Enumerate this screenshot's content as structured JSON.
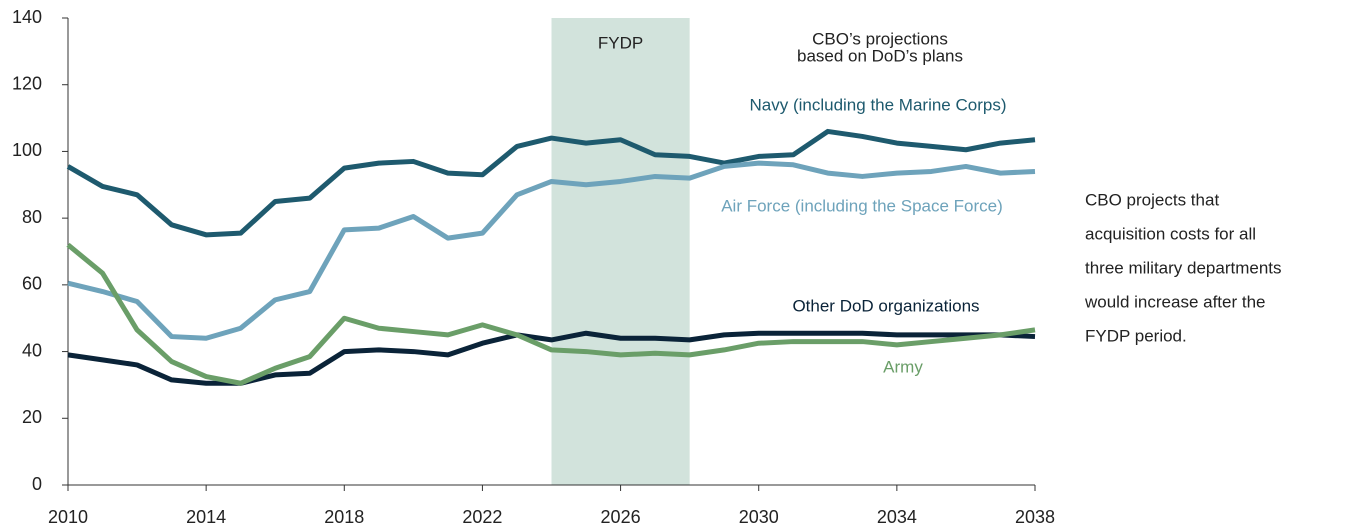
{
  "chart_data": {
    "type": "line",
    "x": [
      2010,
      2011,
      2012,
      2013,
      2014,
      2015,
      2016,
      2017,
      2018,
      2019,
      2020,
      2021,
      2022,
      2023,
      2024,
      2025,
      2026,
      2027,
      2028,
      2029,
      2030,
      2031,
      2032,
      2033,
      2034,
      2035,
      2036,
      2037,
      2038
    ],
    "series": [
      {
        "name": "Navy (including the Marine Corps)",
        "color": "#1e5a6e",
        "values": [
          95.5,
          89.5,
          87,
          78,
          75,
          75.5,
          85,
          86,
          95,
          96.5,
          97,
          93.5,
          93,
          101.5,
          104,
          102.5,
          103.5,
          99,
          98.5,
          96.5,
          98.5,
          99,
          106,
          104.5,
          102.5,
          101.5,
          100.5,
          102.5,
          103.5
        ]
      },
      {
        "name": "Air Force (including the Space Force)",
        "color": "#6ea3bb",
        "values": [
          60.5,
          58,
          55,
          44.5,
          44,
          47,
          55.5,
          58,
          76.5,
          77,
          80.5,
          74,
          75.5,
          87,
          91,
          90,
          91,
          92.5,
          92,
          95.5,
          96.5,
          96,
          93.5,
          92.5,
          93.5,
          94,
          95.5,
          93.5,
          94
        ]
      },
      {
        "name": "Other DoD organizations",
        "color": "#0a2338",
        "values": [
          39,
          37.5,
          36,
          31.5,
          30.5,
          30.5,
          33,
          33.5,
          40,
          40.5,
          40,
          39,
          42.5,
          45,
          43.5,
          45.5,
          44,
          44,
          43.5,
          45,
          45.5,
          45.5,
          45.5,
          45.5,
          45,
          45,
          45,
          45,
          44.5
        ]
      },
      {
        "name": "Army",
        "color": "#6a9e68",
        "values": [
          72,
          63.5,
          46.5,
          37,
          32.5,
          30.5,
          35,
          38.5,
          50,
          47,
          46,
          45,
          48,
          45,
          40.5,
          40,
          39,
          39.5,
          39,
          40.5,
          42.5,
          43,
          43,
          43,
          42,
          43,
          44,
          45,
          46.5
        ]
      }
    ],
    "xlim": [
      2010,
      2038
    ],
    "xticks": [
      2010,
      2014,
      2018,
      2022,
      2026,
      2030,
      2034,
      2038
    ],
    "ylim": [
      0,
      140
    ],
    "yticks": [
      0,
      20,
      40,
      60,
      80,
      100,
      120,
      140
    ],
    "shaded_region": {
      "label": "FYDP",
      "x": [
        2024,
        2028
      ],
      "color": "#d2e3dc"
    },
    "projection_note": [
      "CBO’s projections",
      "based on DoD’s plans"
    ],
    "side_note": [
      "CBO projects that",
      "acquisition costs for all",
      "three military departments",
      "would increase after the",
      "FYDP period."
    ]
  }
}
